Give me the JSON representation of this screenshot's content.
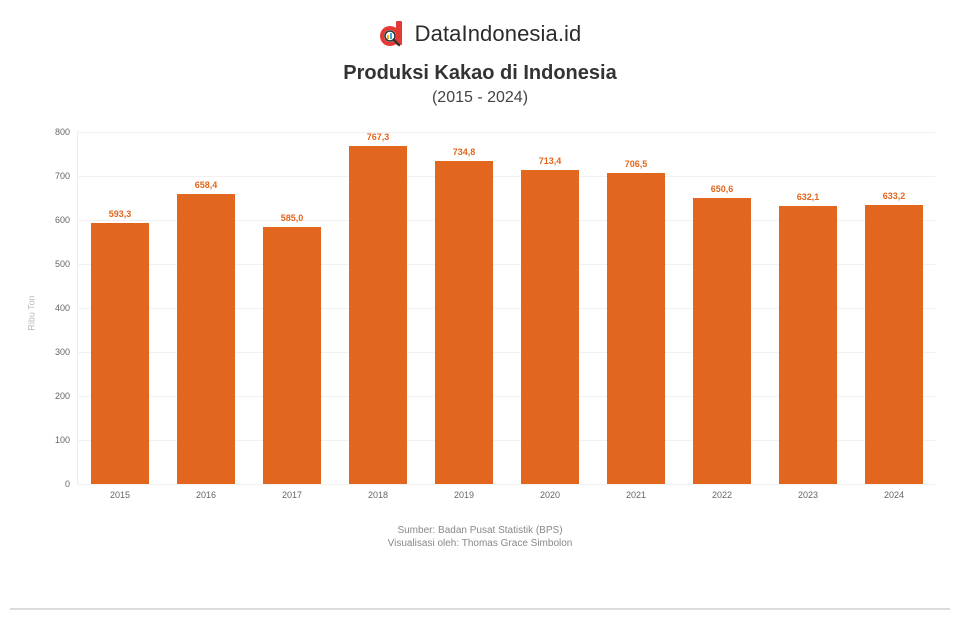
{
  "brand": {
    "name": "DataIndonesia.id",
    "logo_icon": "d-magnifier-logo",
    "logo_color": "#e53935"
  },
  "header": {
    "title": "Produksi Kakao di Indonesia",
    "subtitle": "(2015 - 2024)"
  },
  "footer": {
    "source": "Sumber: Badan Pusat Statistik (BPS)",
    "credit": "Visualisasi oleh: Thomas Grace Simbolon"
  },
  "colors": {
    "bar": "#e2661d",
    "grid": "#f1f1f1",
    "divider": "#dcdcdc"
  },
  "chart_data": {
    "type": "bar",
    "title": "Produksi Kakao di Indonesia",
    "subtitle": "(2015 - 2024)",
    "xlabel": "",
    "ylabel": "Ribu Ton",
    "categories": [
      "2015",
      "2016",
      "2017",
      "2018",
      "2019",
      "2020",
      "2021",
      "2022",
      "2023",
      "2024"
    ],
    "values": [
      593.3,
      658.4,
      585.0,
      767.3,
      734.8,
      713.4,
      706.5,
      650.6,
      632.1,
      633.2
    ],
    "value_labels": [
      "593,3",
      "658,4",
      "585,0",
      "767,3",
      "734,8",
      "713,4",
      "706,5",
      "650,6",
      "632,1",
      "633,2"
    ],
    "ylim": [
      0,
      800
    ],
    "yticks": [
      0,
      100,
      200,
      300,
      400,
      500,
      600,
      700,
      800
    ],
    "grid": true,
    "legend": "none",
    "data_labels": true
  }
}
